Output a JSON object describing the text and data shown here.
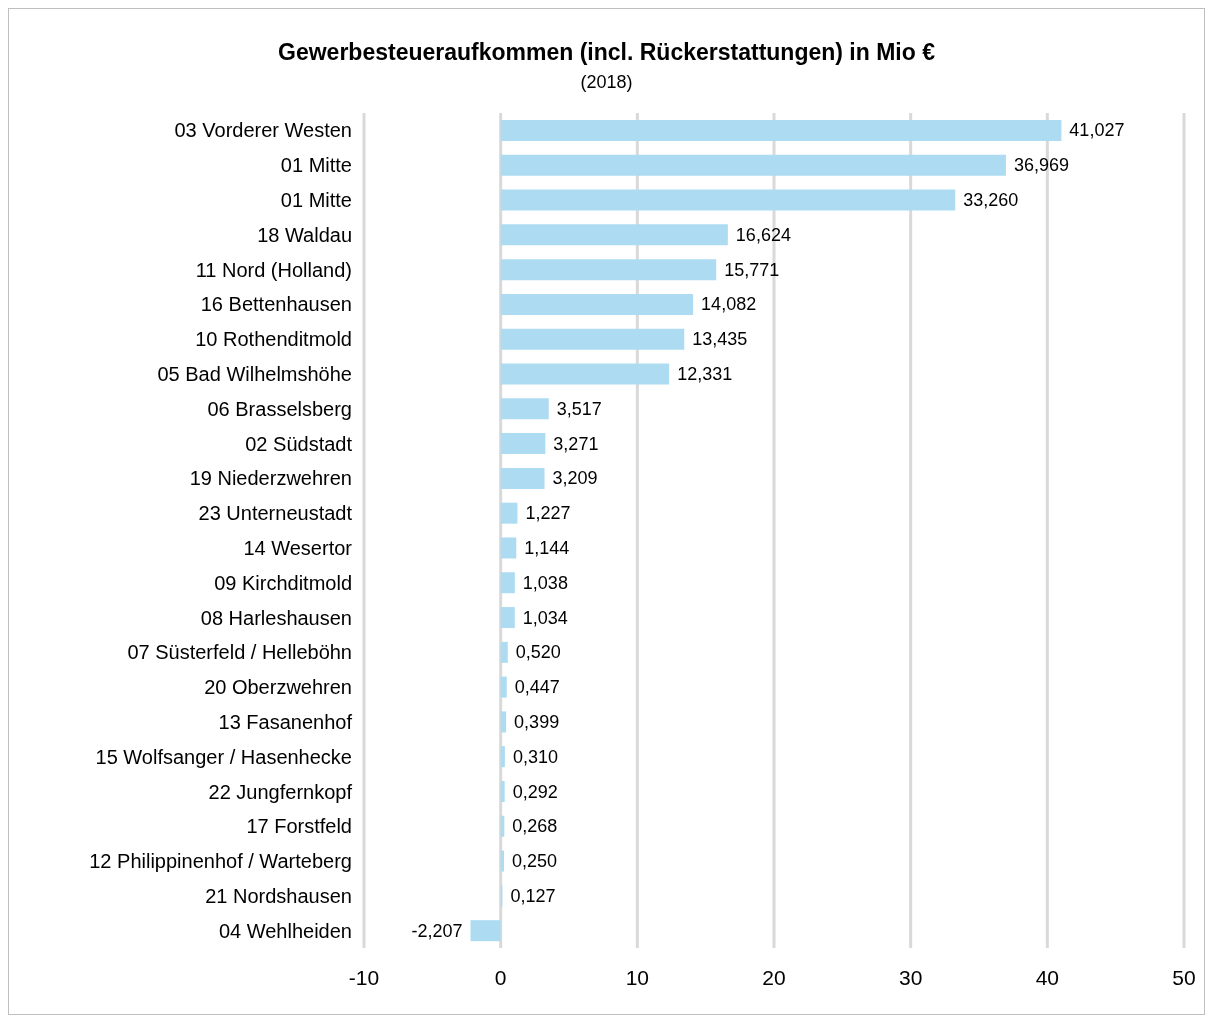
{
  "chart_data": {
    "type": "bar",
    "orientation": "horizontal",
    "title": "Gewerbesteueraufkommen (incl. Rückerstattungen) in Mio €",
    "subtitle": "(2018)",
    "categories": [
      "03 Vorderer Westen",
      "01 Mitte",
      "01 Mitte",
      "18 Waldau",
      "11 Nord (Holland)",
      "16 Bettenhausen",
      "10 Rothenditmold",
      "05 Bad Wilhelmshöhe",
      "06 Brasselsberg",
      "02 Südstadt",
      "19 Niederzwehren",
      "23 Unterneustadt",
      "14 Wesertor",
      "09 Kirchditmold",
      "08 Harleshausen",
      "07 Süsterfeld / Helleböhn",
      "20 Oberzwehren",
      "13 Fasanenhof",
      "15 Wolfsanger / Hasenhecke",
      "22 Jungfernkopf",
      "17 Forstfeld",
      "12 Philippinenhof / Warteberg",
      "21 Nordshausen",
      "04 Wehlheiden"
    ],
    "values": [
      41.027,
      36.969,
      33.26,
      16.624,
      15.771,
      14.082,
      13.435,
      12.331,
      3.517,
      3.271,
      3.209,
      1.227,
      1.144,
      1.038,
      1.034,
      0.52,
      0.447,
      0.399,
      0.31,
      0.292,
      0.268,
      0.25,
      0.127,
      -2.207
    ],
    "value_labels": [
      "41,027",
      "36,969",
      "33,260",
      "16,624",
      "15,771",
      "14,082",
      "13,435",
      "12,331",
      "3,517",
      "3,271",
      "3,209",
      "1,227",
      "1,144",
      "1,038",
      "1,034",
      "0,520",
      "0,447",
      "0,399",
      "0,310",
      "0,292",
      "0,268",
      "0,250",
      "0,127",
      "-2,207"
    ],
    "color": "#addcf2",
    "xlim": [
      -10,
      50
    ],
    "xticks": [
      -10,
      0,
      10,
      20,
      30,
      40,
      50
    ],
    "grid": "x"
  }
}
